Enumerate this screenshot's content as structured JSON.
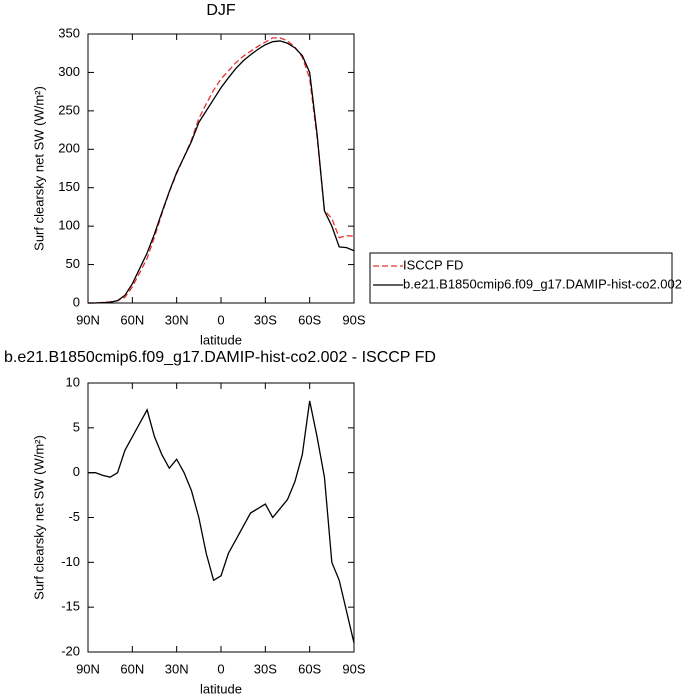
{
  "chart_data": [
    {
      "type": "line",
      "title": "DJF",
      "xlabel": "latitude",
      "ylabel": "Surf clearsky net SW (W/m²)",
      "x": [
        90,
        85,
        80,
        75,
        70,
        65,
        60,
        55,
        50,
        45,
        40,
        35,
        30,
        25,
        20,
        15,
        10,
        5,
        0,
        -5,
        -10,
        -15,
        -20,
        -25,
        -30,
        -35,
        -40,
        -45,
        -50,
        -55,
        -60,
        -65,
        -70,
        -75,
        -80,
        -85,
        -90
      ],
      "xlim": [
        90,
        -90
      ],
      "xticks": [
        {
          "value": 90,
          "label": "90N"
        },
        {
          "value": 60,
          "label": "60N"
        },
        {
          "value": 30,
          "label": "30N"
        },
        0,
        {
          "value": -30,
          "label": "30S"
        },
        {
          "value": -60,
          "label": "60S"
        },
        {
          "value": -90,
          "label": "90S"
        }
      ],
      "ylim": [
        0,
        350
      ],
      "yticks": [
        0,
        50,
        100,
        150,
        200,
        250,
        300,
        350
      ],
      "legend": "outside-right",
      "series": [
        {
          "name": "ISCCP FD",
          "color": "#e8312f",
          "line_style": "dashed",
          "values": [
            0,
            0,
            0.8,
            1.5,
            3,
            7.5,
            21,
            39.5,
            58,
            86,
            116,
            144.5,
            168.5,
            190,
            212,
            240,
            259,
            277,
            291.5,
            302,
            312.5,
            321,
            327.5,
            334,
            339.5,
            345,
            345,
            341,
            333,
            320,
            292,
            216,
            120.5,
            110,
            85,
            87.5,
            87
          ]
        },
        {
          "name": "b.e21.B1850cmip6.f09_g17.DAMIP-hist-co2.002",
          "color": "#000000",
          "line_style": "solid",
          "values": [
            0,
            0,
            0.5,
            1,
            3,
            10,
            25,
            45,
            65,
            90,
            118,
            145,
            170,
            190,
            210,
            235,
            250,
            265,
            280,
            293,
            305,
            315,
            323,
            330,
            336,
            340,
            341,
            338,
            332,
            322,
            300,
            220,
            120,
            100,
            73,
            72,
            68
          ]
        }
      ]
    },
    {
      "type": "line",
      "title": "b.e21.B1850cmip6.f09_g17.DAMIP-hist-co2.002 - ISCCP FD",
      "xlabel": "latitude",
      "ylabel": "Surf clearsky net SW (W/m²)",
      "x": [
        90,
        85,
        80,
        75,
        70,
        65,
        60,
        55,
        50,
        45,
        40,
        35,
        30,
        25,
        20,
        15,
        10,
        5,
        0,
        -5,
        -10,
        -15,
        -20,
        -25,
        -30,
        -35,
        -40,
        -45,
        -50,
        -55,
        -60,
        -65,
        -70,
        -75,
        -80,
        -85,
        -90
      ],
      "xlim": [
        90,
        -90
      ],
      "xticks": [
        {
          "value": 90,
          "label": "90N"
        },
        {
          "value": 60,
          "label": "60N"
        },
        {
          "value": 30,
          "label": "30N"
        },
        0,
        {
          "value": -30,
          "label": "30S"
        },
        {
          "value": -60,
          "label": "60S"
        },
        {
          "value": -90,
          "label": "90S"
        }
      ],
      "ylim": [
        -20,
        10
      ],
      "yticks": [
        -20,
        -15,
        -10,
        -5,
        0,
        5,
        10
      ],
      "series": [
        {
          "color": "#000000",
          "line_style": "solid",
          "values": [
            0,
            0,
            -0.3,
            -0.5,
            0,
            2.5,
            4,
            5.5,
            7,
            4,
            2,
            0.5,
            1.5,
            0,
            -2,
            -5,
            -9,
            -12,
            -11.5,
            -9,
            -7.5,
            -6,
            -4.5,
            -4,
            -3.5,
            -5,
            -4,
            -3,
            -1,
            2,
            8,
            4,
            -0.5,
            -10,
            -12,
            -15.5,
            -19
          ]
        }
      ]
    }
  ]
}
